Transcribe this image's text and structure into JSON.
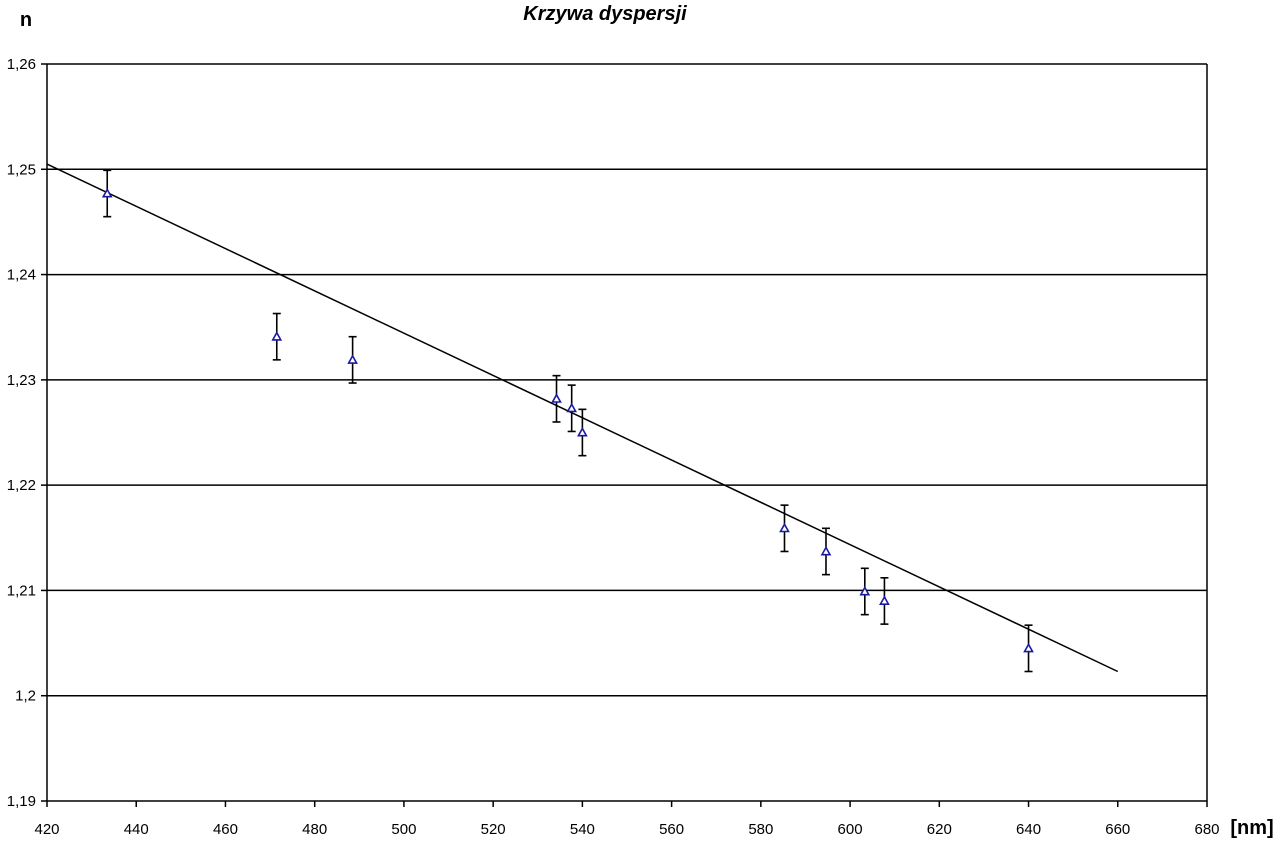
{
  "chart_data": {
    "type": "scatter",
    "title": "Krzywa dyspersji",
    "xlabel": "[nm]",
    "ylabel": "n",
    "xlim": [
      420,
      680
    ],
    "ylim": [
      1.19,
      1.26
    ],
    "x_ticks": [
      420,
      440,
      460,
      480,
      500,
      520,
      540,
      560,
      580,
      600,
      620,
      640,
      660,
      680
    ],
    "x_tick_labels": [
      "420",
      "440",
      "460",
      "480",
      "500",
      "520",
      "540",
      "560",
      "580",
      "600",
      "620",
      "640",
      "660",
      "680"
    ],
    "y_ticks": [
      1.19,
      1.2,
      1.21,
      1.22,
      1.23,
      1.24,
      1.25,
      1.26
    ],
    "y_tick_labels": [
      "1,19",
      "1,2",
      "1,21",
      "1,22",
      "1,23",
      "1,24",
      "1,25",
      "1,26"
    ],
    "grid": {
      "horizontal": true,
      "vertical": false
    },
    "series": [
      {
        "type": "scatter",
        "marker": "triangle",
        "color": "#1a1aa0",
        "points": [
          {
            "x": 433.5,
            "y": 1.2477,
            "err": 0.0022
          },
          {
            "x": 471.5,
            "y": 1.2341,
            "err": 0.0022
          },
          {
            "x": 488.5,
            "y": 1.2319,
            "err": 0.0022
          },
          {
            "x": 534.2,
            "y": 1.2282,
            "err": 0.0022
          },
          {
            "x": 537.6,
            "y": 1.2273,
            "err": 0.0022
          },
          {
            "x": 540.0,
            "y": 1.225,
            "err": 0.0022
          },
          {
            "x": 585.3,
            "y": 1.2159,
            "err": 0.0022
          },
          {
            "x": 594.6,
            "y": 1.2137,
            "err": 0.0022
          },
          {
            "x": 603.3,
            "y": 1.2099,
            "err": 0.0022
          },
          {
            "x": 607.7,
            "y": 1.209,
            "err": 0.0022
          },
          {
            "x": 640.0,
            "y": 1.2045,
            "err": 0.0022
          }
        ]
      },
      {
        "type": "line",
        "color": "#000000",
        "x": [
          420,
          660
        ],
        "y": [
          1.2505,
          1.2023
        ]
      }
    ]
  }
}
